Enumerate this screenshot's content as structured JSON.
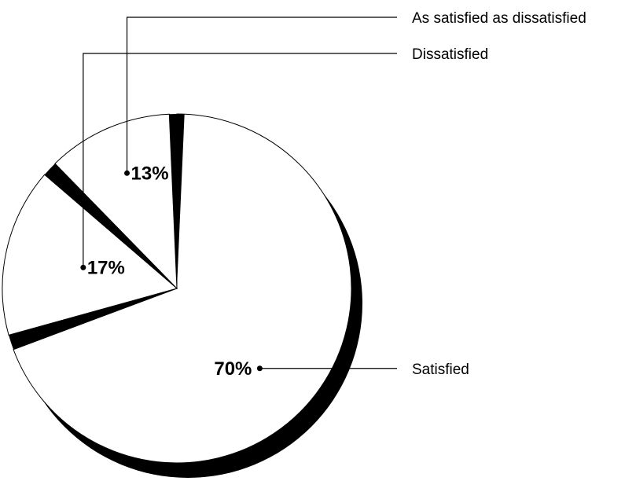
{
  "chart_data": {
    "type": "pie",
    "title": "",
    "categories": [
      "Satisfied",
      "Dissatisfied",
      "As satisfied as dissatisfied"
    ],
    "values": [
      70,
      17,
      13
    ],
    "value_labels": [
      "70%",
      "17%",
      "13%"
    ],
    "legend_placement": "callout-lines-right",
    "grid": false
  },
  "colors": {
    "slice_fill": "#ffffff",
    "shadow": "#000000",
    "outline": "#000000",
    "background": "#ffffff"
  }
}
